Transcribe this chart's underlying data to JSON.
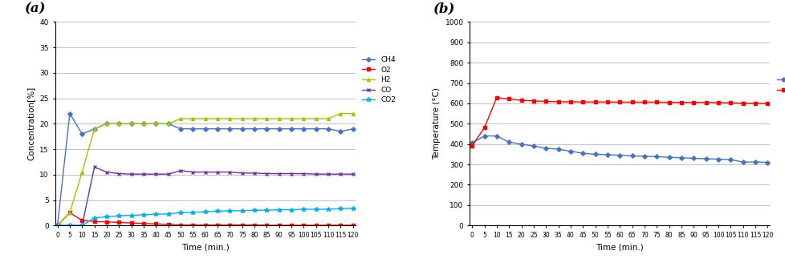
{
  "time_a": [
    0,
    5,
    10,
    15,
    20,
    25,
    30,
    35,
    40,
    45,
    50,
    55,
    60,
    65,
    70,
    75,
    80,
    85,
    90,
    95,
    100,
    105,
    110,
    115,
    120
  ],
  "CH4": [
    0,
    22,
    18,
    19,
    20,
    20,
    20,
    20,
    20,
    20,
    19,
    19,
    19,
    19,
    19,
    19,
    19,
    19,
    19,
    19,
    19,
    19,
    19,
    18.5,
    19
  ],
  "O2": [
    0,
    2.5,
    1.0,
    0.8,
    0.7,
    0.6,
    0.5,
    0.4,
    0.3,
    0.2,
    0.1,
    0.1,
    0.1,
    0.1,
    0.1,
    0.1,
    0.1,
    0.05,
    0.05,
    0.05,
    0.05,
    0.05,
    0.05,
    0.05,
    0.05
  ],
  "H2": [
    0,
    2.5,
    10.5,
    19,
    20,
    20,
    20,
    20,
    20,
    20,
    21,
    21,
    21,
    21,
    21,
    21,
    21,
    21,
    21,
    21,
    21,
    21,
    21,
    22,
    22
  ],
  "CO": [
    0,
    0,
    0,
    11.5,
    10.5,
    10.2,
    10.1,
    10.1,
    10.1,
    10.1,
    10.8,
    10.5,
    10.5,
    10.5,
    10.5,
    10.3,
    10.3,
    10.2,
    10.2,
    10.2,
    10.2,
    10.1,
    10.1,
    10.1,
    10.1
  ],
  "CO2": [
    0,
    0,
    0,
    1.5,
    1.7,
    1.9,
    2.0,
    2.1,
    2.2,
    2.3,
    2.5,
    2.6,
    2.7,
    2.8,
    2.9,
    2.9,
    3.0,
    3.0,
    3.1,
    3.1,
    3.2,
    3.2,
    3.2,
    3.3,
    3.4
  ],
  "time_b": [
    0,
    5,
    10,
    15,
    20,
    25,
    30,
    35,
    40,
    45,
    50,
    55,
    60,
    65,
    70,
    75,
    80,
    85,
    90,
    95,
    100,
    105,
    110,
    115,
    120
  ],
  "gas_temp": [
    405,
    440,
    440,
    410,
    400,
    390,
    380,
    375,
    365,
    355,
    350,
    348,
    345,
    342,
    340,
    338,
    335,
    333,
    330,
    328,
    326,
    324,
    312,
    312,
    310
  ],
  "catal_temp": [
    392,
    480,
    628,
    622,
    615,
    612,
    610,
    608,
    608,
    607,
    607,
    607,
    606,
    606,
    606,
    606,
    605,
    605,
    605,
    605,
    604,
    603,
    601,
    600,
    600
  ],
  "color_CH4": "#4472C4",
  "color_O2": "#FF0000",
  "color_H2": "#9DC700",
  "color_CO": "#7030A0",
  "color_CO2": "#00B0F0",
  "color_gas": "#4472C4",
  "color_catal": "#FF0000",
  "label_a": "(a)",
  "label_b": "(b)",
  "ylabel_a": "Concentration[%]",
  "ylabel_b": "Temperature (°C)",
  "xlabel": "Time (min.)",
  "ylim_a": [
    0,
    40
  ],
  "ylim_b": [
    0,
    1000
  ],
  "yticks_a": [
    0,
    5,
    10,
    15,
    20,
    25,
    30,
    35,
    40
  ],
  "yticks_b": [
    0,
    100,
    200,
    300,
    400,
    500,
    600,
    700,
    800,
    900,
    1000
  ],
  "xticks": [
    0,
    5,
    10,
    15,
    20,
    25,
    30,
    35,
    40,
    45,
    50,
    55,
    60,
    65,
    70,
    75,
    80,
    85,
    90,
    95,
    100,
    105,
    110,
    115,
    120
  ]
}
